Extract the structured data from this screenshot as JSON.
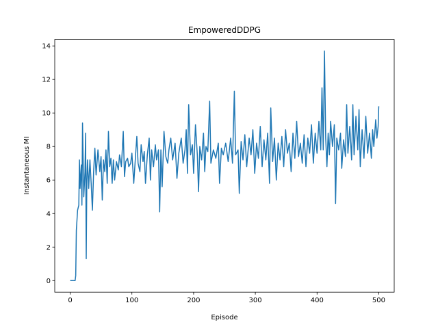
{
  "chart_data": {
    "type": "line",
    "title": "EmpoweredDDPG",
    "xlabel": "Episode",
    "ylabel": "Instantaneous MI",
    "color": "#1f77b4",
    "x": [
      0,
      8,
      9,
      10,
      12,
      14,
      15,
      16,
      18,
      19,
      20,
      22,
      24,
      25,
      26,
      27,
      28,
      30,
      32,
      34,
      36,
      38,
      40,
      42,
      45,
      48,
      50,
      52,
      54,
      56,
      58,
      60,
      62,
      64,
      66,
      68,
      70,
      72,
      75,
      78,
      80,
      83,
      86,
      88,
      90,
      93,
      95,
      98,
      100,
      103,
      106,
      108,
      110,
      113,
      115,
      118,
      120,
      122,
      125,
      128,
      130,
      132,
      135,
      138,
      140,
      143,
      145,
      147,
      149,
      152,
      155,
      158,
      160,
      163,
      166,
      170,
      173,
      176,
      180,
      183,
      186,
      188,
      190,
      192,
      195,
      198,
      200,
      203,
      206,
      208,
      210,
      213,
      216,
      218,
      220,
      223,
      226,
      228,
      232,
      236,
      240,
      242,
      245,
      248,
      252,
      256,
      260,
      263,
      266,
      268,
      272,
      274,
      277,
      280,
      283,
      286,
      290,
      293,
      296,
      299,
      302,
      305,
      308,
      311,
      314,
      317,
      320,
      323,
      325,
      328,
      331,
      334,
      337,
      340,
      343,
      346,
      349,
      352,
      355,
      358,
      361,
      364,
      367,
      370,
      373,
      376,
      379,
      382,
      385,
      388,
      391,
      394,
      397,
      400,
      403,
      406,
      408,
      410,
      412,
      414,
      416,
      418,
      420,
      422,
      425,
      428,
      430,
      432,
      435,
      438,
      440,
      443,
      446,
      448,
      450,
      453,
      456,
      458,
      460,
      463,
      466,
      468,
      470,
      473,
      476,
      479,
      482,
      485,
      488,
      490,
      492,
      495,
      497,
      499,
      500
    ],
    "values": [
      0,
      0,
      0.3,
      3,
      4.2,
      4.5,
      7.2,
      5.5,
      6.9,
      4.5,
      9.4,
      5,
      6.5,
      8.8,
      1.3,
      6,
      7.2,
      5.5,
      7.2,
      5.8,
      4.2,
      6.5,
      7.9,
      6.3,
      7.8,
      6.5,
      7.4,
      4.8,
      7.2,
      6.5,
      7.8,
      5.8,
      8.9,
      6.8,
      7.3,
      5.8,
      7.2,
      6.0,
      7.1,
      6.6,
      7.5,
      6.8,
      8.9,
      6.2,
      7.1,
      7.3,
      6.8,
      7.0,
      7.6,
      5.8,
      7.5,
      8.6,
      7.0,
      6.5,
      8.1,
      7.1,
      7.7,
      5.8,
      7.5,
      8.5,
      6.0,
      7.8,
      6.8,
      8.1,
      7.2,
      7.8,
      4.1,
      7.8,
      5.6,
      8.9,
      7.4,
      7.0,
      7.8,
      8.5,
      7.2,
      8.2,
      6.1,
      7.6,
      8.5,
      7.0,
      7.8,
      9.0,
      6.4,
      10.5,
      7.5,
      8.1,
      6.4,
      9.3,
      7.5,
      5.3,
      8.0,
      7.2,
      8.8,
      6.5,
      8.0,
      7.7,
      10.7,
      7.0,
      7.8,
      7.3,
      8.2,
      5.8,
      7.9,
      7.5,
      8.2,
      7.1,
      8.5,
      7.0,
      11.3,
      7.5,
      7.8,
      5.2,
      8.3,
      7.2,
      8.7,
      6.8,
      8.5,
      7.5,
      9.0,
      6.4,
      8.2,
      7.3,
      9.2,
      6.8,
      8.4,
      7.2,
      8.8,
      5.8,
      10.3,
      7.1,
      8.5,
      6.0,
      8.2,
      7.2,
      8.6,
      6.8,
      9.0,
      7.6,
      8.2,
      6.5,
      8.8,
      7.3,
      9.5,
      7.4,
      8.2,
      7.0,
      8.7,
      6.8,
      8.5,
      7.6,
      9.3,
      7.0,
      8.8,
      7.6,
      9.5,
      7.8,
      11.5,
      7.8,
      13.7,
      8.5,
      6.8,
      8.8,
      7.5,
      9.5,
      8.0,
      9.3,
      4.6,
      8.5,
      7.8,
      8.8,
      6.7,
      8.4,
      7.4,
      10.5,
      7.6,
      9.2,
      7.2,
      10.5,
      7.5,
      9.8,
      7.8,
      10.2,
      6.8,
      9.0,
      7.3,
      9.8,
      7.6,
      8.8,
      7.3,
      9.0,
      8.0,
      9.6,
      8.5,
      9.2,
      10.4
    ],
    "xlim": [
      -25,
      525
    ],
    "xticks": [
      0,
      100,
      200,
      300,
      400,
      500
    ],
    "ylim": [
      -0.69,
      14.39
    ],
    "yticks": [
      0,
      2,
      4,
      6,
      8,
      10,
      12,
      14
    ]
  }
}
